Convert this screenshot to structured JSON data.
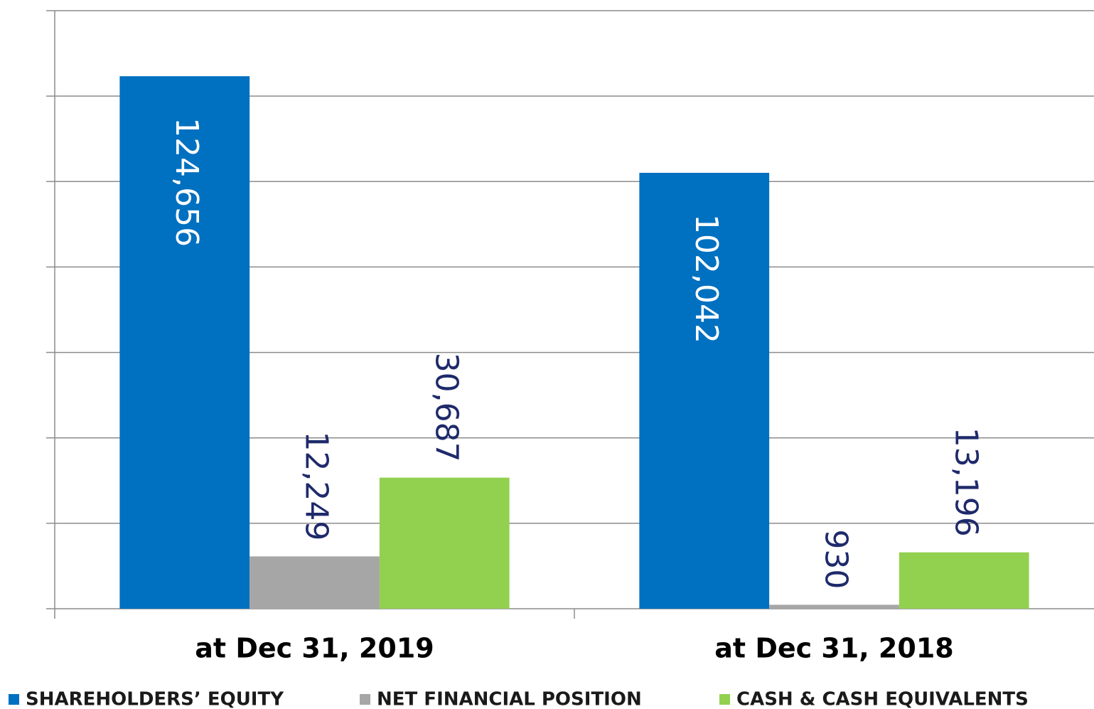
{
  "chart_data": {
    "type": "bar",
    "categories": [
      "at Dec 31, 2019",
      "at Dec 31, 2018"
    ],
    "series": [
      {
        "name": "SHAREHOLDERS’ EQUITY",
        "color": "#0070c0",
        "values": [
          124656,
          102042
        ],
        "value_labels": [
          "124,656",
          "102,042"
        ]
      },
      {
        "name": "NET FINANCIAL POSITION",
        "color": "#a6a6a6",
        "values": [
          12249,
          930
        ],
        "value_labels": [
          "12,249",
          "930"
        ]
      },
      {
        "name": "CASH & CASH EQUIVALENTS",
        "color": "#92d050",
        "values": [
          30687,
          13196
        ],
        "value_labels": [
          "30,687",
          "13,196"
        ]
      }
    ],
    "ylim": [
      0,
      140000
    ],
    "yticks": [
      0,
      20000,
      40000,
      60000,
      80000,
      100000,
      120000,
      140000
    ],
    "grid": true
  }
}
